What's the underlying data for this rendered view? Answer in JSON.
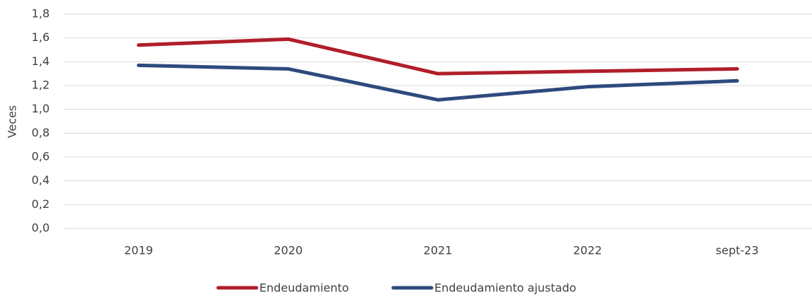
{
  "chart_data": {
    "type": "line",
    "y_label": "Veces",
    "categories": [
      "2019",
      "2020",
      "2021",
      "2022",
      "sept-23"
    ],
    "series": [
      {
        "name": "Endeudamiento",
        "color": "#b01e2a",
        "values": [
          1.54,
          1.59,
          1.3,
          1.32,
          1.34
        ]
      },
      {
        "name": "Endeudamiento ajustado",
        "color": "#2e4a7d",
        "values": [
          1.37,
          1.34,
          1.08,
          1.19,
          1.24
        ]
      }
    ],
    "ylim": [
      0,
      1.8
    ],
    "yticks": [
      {
        "value": 0,
        "label": "0,0"
      },
      {
        "value": 0.2,
        "label": "0,2"
      },
      {
        "value": 0.4,
        "label": "0,4"
      },
      {
        "value": 0.6,
        "label": "0,6"
      },
      {
        "value": 0.8,
        "label": "0,8"
      },
      {
        "value": 1.0,
        "label": "1,0"
      },
      {
        "value": 1.2,
        "label": "1,2"
      },
      {
        "value": 1.4,
        "label": "1,4"
      },
      {
        "value": 1.6,
        "label": "1,6"
      },
      {
        "value": 1.8,
        "label": "1,8"
      }
    ],
    "grid": true,
    "legend": "bottom"
  }
}
